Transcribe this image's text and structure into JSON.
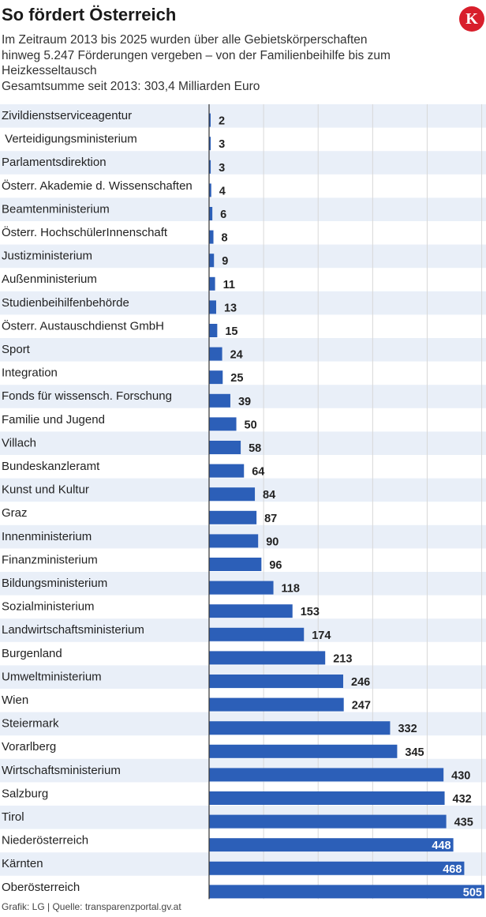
{
  "header": {
    "title": "So fördert Österreich",
    "subtitle_lines": [
      "Im Zeitraum 2013 bis 2025 wurden über alle Gebietskörperschaften",
      "hinweg 5.247 Förderungen vergeben – von der Familienbeihilfe bis zum",
      "Heizkesseltausch",
      "Gesamtsumme seit 2013: 303,4 Milliarden Euro"
    ],
    "logo_letter": "K"
  },
  "footer": "Grafik: LG | Quelle: transparenzportal.gv.at",
  "colors": {
    "bar": "#2c5fb8",
    "row_stripe": "#e9eff8",
    "grid": "#d8d8d8",
    "axis": "#333333",
    "value_outside": "#222222",
    "value_inside": "#ffffff",
    "logo": "#d81e2b"
  },
  "chart_data": {
    "type": "bar",
    "orientation": "horizontal",
    "categories": [
      "Zivildienstserviceagentur",
      " Verteidigungsministerium",
      "Parlamentsdirektion",
      "Österr. Akademie d. Wissenschaften",
      "Beamtenministerium",
      "Österr. HochschülerInnenschaft",
      "Justizministerium",
      "Außenministerium",
      "Studienbeihilfenbehörde",
      "Österr. Austauschdienst GmbH",
      "Sport",
      "Integration",
      "Fonds für wissensch. Forschung",
      "Familie und Jugend",
      "Villach",
      "Bundeskanzleramt",
      "Kunst und Kultur",
      "Graz",
      "Innenministerium",
      "Finanzministerium",
      "Bildungsministerium",
      "Sozialministerium",
      "Landwirtschaftsministerium",
      "Burgenland",
      "Umweltministerium",
      "Wien",
      "Steiermark",
      "Vorarlberg",
      "Wirtschaftsministerium",
      "Salzburg",
      "Tirol",
      "Niederösterreich",
      "Kärnten",
      "Oberösterreich"
    ],
    "values": [
      2,
      3,
      3,
      4,
      6,
      8,
      9,
      11,
      13,
      15,
      24,
      25,
      39,
      50,
      58,
      64,
      84,
      87,
      90,
      96,
      118,
      153,
      174,
      213,
      246,
      247,
      332,
      345,
      430,
      432,
      435,
      448,
      468,
      505
    ],
    "xlim": [
      0,
      505
    ],
    "grid": true,
    "title": "So fördert Österreich"
  }
}
